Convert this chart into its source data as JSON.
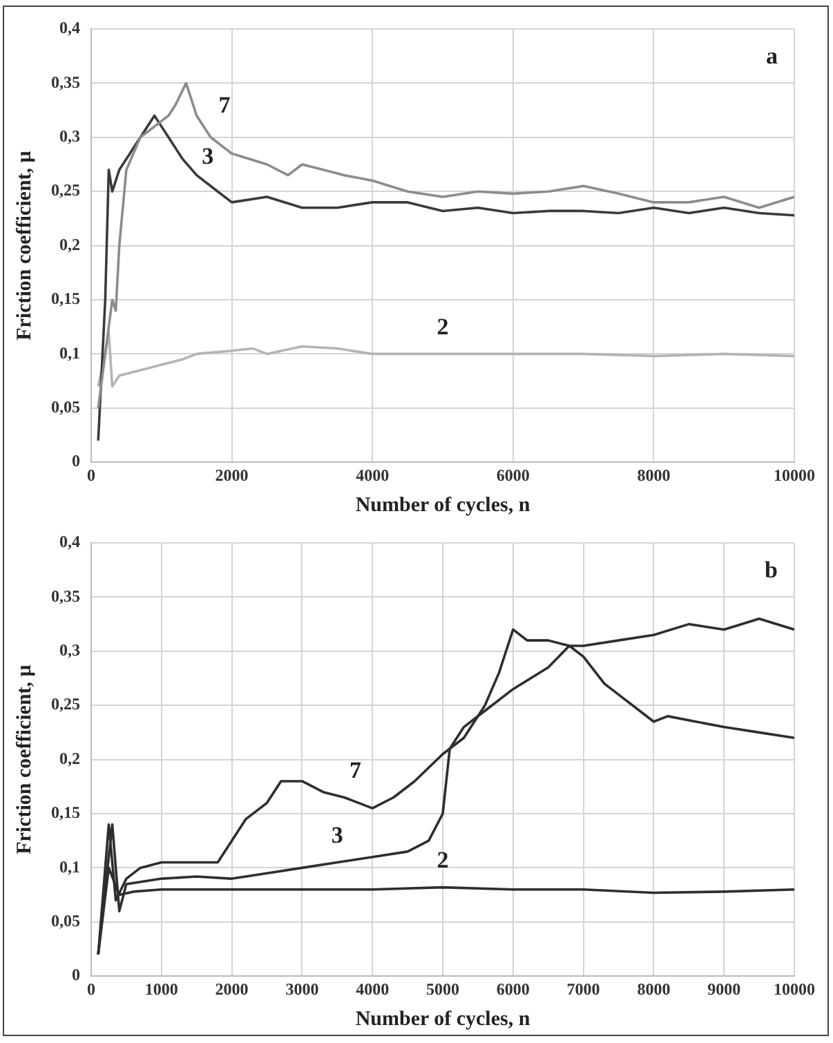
{
  "chart_data": [
    {
      "type": "line",
      "title": "a",
      "xlabel": "Number of cycles, n",
      "ylabel": "Friction coefficient, μ",
      "xlim": [
        0,
        10000
      ],
      "xticks": [
        0,
        2000,
        4000,
        6000,
        8000,
        10000
      ],
      "ylim": [
        0,
        0.4
      ],
      "yticks": [
        {
          "value": 0,
          "label": "0"
        },
        {
          "value": 0.05,
          "label": "0,05"
        },
        {
          "value": 0.1,
          "label": "0,1"
        },
        {
          "value": 0.15,
          "label": "0,15"
        },
        {
          "value": 0.2,
          "label": "0,2"
        },
        {
          "value": 0.25,
          "label": "0,25"
        },
        {
          "value": 0.3,
          "label": "0,3"
        },
        {
          "value": 0.35,
          "label": "0,35"
        },
        {
          "value": 0.4,
          "label": "0,4"
        }
      ],
      "grid": true,
      "legend": false,
      "marker": "none",
      "line_style": "solid",
      "series": [
        {
          "name": "7",
          "color": "#8c8c8c",
          "x": [
            100,
            200,
            300,
            350,
            400,
            500,
            700,
            900,
            1100,
            1200,
            1350,
            1500,
            1700,
            2000,
            2500,
            2800,
            3000,
            3300,
            3600,
            4000,
            4500,
            5000,
            5500,
            6000,
            6500,
            7000,
            7500,
            8000,
            8500,
            9000,
            9500,
            10000
          ],
          "values": [
            0.05,
            0.1,
            0.15,
            0.14,
            0.2,
            0.27,
            0.3,
            0.31,
            0.32,
            0.33,
            0.35,
            0.32,
            0.3,
            0.285,
            0.275,
            0.265,
            0.275,
            0.27,
            0.265,
            0.26,
            0.25,
            0.245,
            0.25,
            0.248,
            0.25,
            0.255,
            0.248,
            0.24,
            0.24,
            0.245,
            0.235,
            0.245
          ]
        },
        {
          "name": "3",
          "color": "#3a3a3a",
          "x": [
            100,
            200,
            250,
            300,
            400,
            500,
            700,
            900,
            1000,
            1100,
            1300,
            1500,
            1800,
            2000,
            2500,
            3000,
            3500,
            4000,
            4500,
            5000,
            5500,
            6000,
            6500,
            7000,
            7500,
            8000,
            8500,
            9000,
            9500,
            10000
          ],
          "values": [
            0.02,
            0.15,
            0.27,
            0.25,
            0.27,
            0.28,
            0.3,
            0.32,
            0.31,
            0.3,
            0.28,
            0.265,
            0.25,
            0.24,
            0.245,
            0.235,
            0.235,
            0.24,
            0.24,
            0.232,
            0.235,
            0.23,
            0.232,
            0.232,
            0.23,
            0.235,
            0.23,
            0.235,
            0.23,
            0.228
          ]
        },
        {
          "name": "2",
          "color": "#b4b4b4",
          "x": [
            100,
            200,
            250,
            300,
            400,
            700,
            1000,
            1300,
            1500,
            2000,
            2300,
            2500,
            3000,
            3500,
            4000,
            5000,
            6000,
            7000,
            8000,
            9000,
            10000
          ],
          "values": [
            0.07,
            0.1,
            0.12,
            0.07,
            0.08,
            0.085,
            0.09,
            0.095,
            0.1,
            0.103,
            0.105,
            0.1,
            0.107,
            0.105,
            0.1,
            0.1,
            0.1,
            0.1,
            0.098,
            0.1,
            0.098
          ]
        }
      ]
    },
    {
      "type": "line",
      "title": "b",
      "xlabel": "Number of cycles, n",
      "ylabel": "Friction coefficient, μ",
      "xlim": [
        0,
        10000
      ],
      "xticks": [
        0,
        1000,
        2000,
        3000,
        4000,
        5000,
        6000,
        7000,
        8000,
        9000,
        10000
      ],
      "ylim": [
        0,
        0.4
      ],
      "yticks": [
        {
          "value": 0,
          "label": "0"
        },
        {
          "value": 0.05,
          "label": "0,05"
        },
        {
          "value": 0.1,
          "label": "0,1"
        },
        {
          "value": 0.15,
          "label": "0,15"
        },
        {
          "value": 0.2,
          "label": "0,2"
        },
        {
          "value": 0.25,
          "label": "0,25"
        },
        {
          "value": 0.3,
          "label": "0,3"
        },
        {
          "value": 0.35,
          "label": "0,35"
        },
        {
          "value": 0.4,
          "label": "0,4"
        }
      ],
      "grid": true,
      "legend": false,
      "marker": "none",
      "line_style": "solid",
      "series": [
        {
          "name": "7",
          "color": "#2e2e2e",
          "x": [
            100,
            250,
            350,
            500,
            700,
            1000,
            1500,
            1800,
            2000,
            2200,
            2500,
            2700,
            3000,
            3300,
            3600,
            4000,
            4300,
            4600,
            5000,
            5300,
            5600,
            5800,
            6000,
            6200,
            6500,
            6800,
            7000,
            7300,
            7600,
            8000,
            8200,
            8600,
            9000,
            9500,
            10000
          ],
          "values": [
            0.02,
            0.14,
            0.07,
            0.09,
            0.1,
            0.105,
            0.105,
            0.105,
            0.125,
            0.145,
            0.16,
            0.18,
            0.18,
            0.17,
            0.165,
            0.155,
            0.165,
            0.18,
            0.205,
            0.22,
            0.25,
            0.28,
            0.32,
            0.31,
            0.31,
            0.305,
            0.295,
            0.27,
            0.255,
            0.235,
            0.24,
            0.235,
            0.23,
            0.225,
            0.22
          ]
        },
        {
          "name": "3",
          "color": "#2e2e2e",
          "x": [
            100,
            300,
            400,
            500,
            1000,
            1500,
            2000,
            2500,
            3000,
            3500,
            4000,
            4500,
            4800,
            5000,
            5100,
            5300,
            5600,
            6000,
            6500,
            6800,
            7000,
            7500,
            8000,
            8500,
            9000,
            9500,
            10000
          ],
          "values": [
            0.02,
            0.14,
            0.06,
            0.085,
            0.09,
            0.092,
            0.09,
            0.095,
            0.1,
            0.105,
            0.11,
            0.115,
            0.125,
            0.15,
            0.21,
            0.23,
            0.245,
            0.265,
            0.285,
            0.305,
            0.305,
            0.31,
            0.315,
            0.325,
            0.32,
            0.33,
            0.32
          ]
        },
        {
          "name": "2",
          "color": "#2e2e2e",
          "x": [
            100,
            250,
            400,
            600,
            1000,
            2000,
            3000,
            4000,
            5000,
            6000,
            7000,
            8000,
            9000,
            10000
          ],
          "values": [
            0.02,
            0.1,
            0.075,
            0.078,
            0.08,
            0.08,
            0.08,
            0.08,
            0.082,
            0.08,
            0.08,
            0.077,
            0.078,
            0.08
          ]
        }
      ]
    }
  ]
}
